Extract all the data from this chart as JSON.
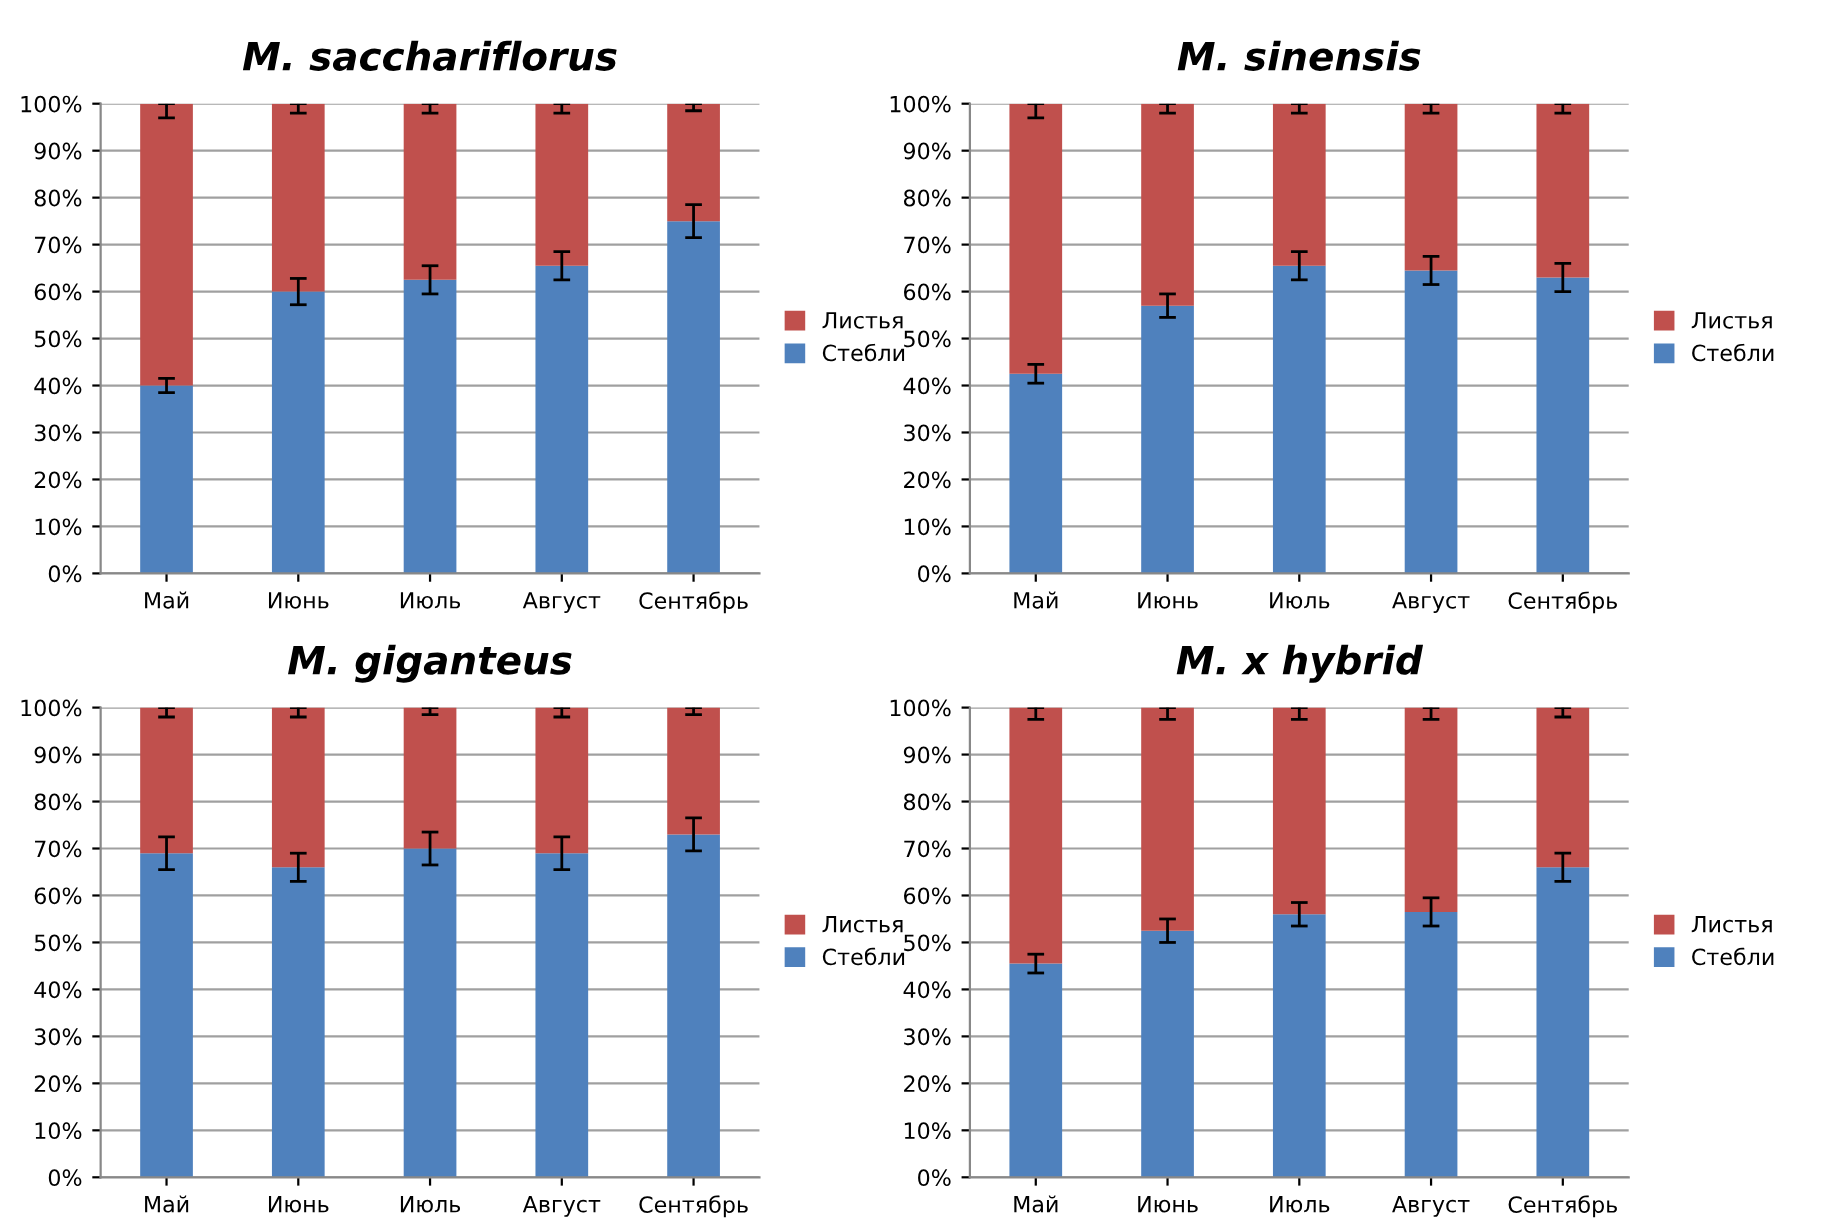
{
  "chart_data": [
    {
      "type": "bar",
      "stacked": true,
      "title": "M. sacchariflorus",
      "categories": [
        "Май",
        "Июнь",
        "Июль",
        "Август",
        "Сентябрь"
      ],
      "ylim": [
        0,
        100
      ],
      "yticks": [
        {
          "value": 0,
          "label": "0%"
        },
        {
          "value": 10,
          "label": "10%"
        },
        {
          "value": 20,
          "label": "20%"
        },
        {
          "value": 30,
          "label": "30%"
        },
        {
          "value": 40,
          "label": "40%"
        },
        {
          "value": 50,
          "label": "50%"
        },
        {
          "value": 60,
          "label": "60%"
        },
        {
          "value": 70,
          "label": "70%"
        },
        {
          "value": 80,
          "label": "80%"
        },
        {
          "value": 90,
          "label": "90%"
        },
        {
          "value": 100,
          "label": "100%"
        }
      ],
      "grid": "y",
      "legend": "right",
      "series": [
        {
          "name": "Стебли",
          "color": "#4f81bd",
          "values": [
            40,
            60,
            62.5,
            65.5,
            75
          ],
          "errors": [
            1.5,
            2.8,
            3,
            3,
            3.5
          ]
        },
        {
          "name": "Листья",
          "color": "#c0504d",
          "values": [
            60,
            40,
            37.5,
            34.5,
            25
          ],
          "errors": [
            [
              97,
              100
            ],
            [
              98,
              100
            ],
            [
              98,
              100
            ],
            [
              98,
              100
            ],
            [
              98.5,
              100
            ]
          ]
        }
      ]
    },
    {
      "type": "bar",
      "stacked": true,
      "title": "M. sinensis",
      "categories": [
        "Май",
        "Июнь",
        "Июль",
        "Август",
        "Сентябрь"
      ],
      "ylim": [
        0,
        100
      ],
      "yticks": [
        {
          "value": 0,
          "label": "0%"
        },
        {
          "value": 10,
          "label": "10%"
        },
        {
          "value": 20,
          "label": "20%"
        },
        {
          "value": 30,
          "label": "30%"
        },
        {
          "value": 40,
          "label": "40%"
        },
        {
          "value": 50,
          "label": "50%"
        },
        {
          "value": 60,
          "label": "60%"
        },
        {
          "value": 70,
          "label": "70%"
        },
        {
          "value": 80,
          "label": "80%"
        },
        {
          "value": 90,
          "label": "90%"
        },
        {
          "value": 100,
          "label": "100%"
        }
      ],
      "grid": "y",
      "legend": "right",
      "series": [
        {
          "name": "Стебли",
          "color": "#4f81bd",
          "values": [
            42.5,
            57,
            65.5,
            64.5,
            63
          ],
          "errors": [
            2,
            2.5,
            3,
            3,
            3
          ]
        },
        {
          "name": "Листья",
          "color": "#c0504d",
          "values": [
            57.5,
            43,
            34.5,
            35.5,
            37
          ],
          "errors": [
            [
              97,
              100
            ],
            [
              98,
              100
            ],
            [
              98,
              100
            ],
            [
              98,
              100
            ],
            [
              98,
              100
            ]
          ]
        }
      ]
    },
    {
      "type": "bar",
      "stacked": true,
      "title": "M. giganteus",
      "categories": [
        "Май",
        "Июнь",
        "Июль",
        "Август",
        "Сентябрь"
      ],
      "ylim": [
        0,
        100
      ],
      "yticks": [
        {
          "value": 0,
          "label": "0%"
        },
        {
          "value": 10,
          "label": "10%"
        },
        {
          "value": 20,
          "label": "20%"
        },
        {
          "value": 30,
          "label": "30%"
        },
        {
          "value": 40,
          "label": "40%"
        },
        {
          "value": 50,
          "label": "50%"
        },
        {
          "value": 60,
          "label": "60%"
        },
        {
          "value": 70,
          "label": "70%"
        },
        {
          "value": 80,
          "label": "80%"
        },
        {
          "value": 90,
          "label": "90%"
        },
        {
          "value": 100,
          "label": "100%"
        }
      ],
      "grid": "y",
      "legend": "right",
      "series": [
        {
          "name": "Стебли",
          "color": "#4f81bd",
          "values": [
            69,
            66,
            70,
            69,
            73
          ],
          "errors": [
            3.5,
            3,
            3.5,
            3.5,
            3.5
          ]
        },
        {
          "name": "Листья",
          "color": "#c0504d",
          "values": [
            31,
            34,
            30,
            31,
            27
          ],
          "errors": [
            [
              98,
              100
            ],
            [
              98,
              100
            ],
            [
              98.5,
              100
            ],
            [
              98,
              100
            ],
            [
              98.5,
              100
            ]
          ]
        }
      ]
    },
    {
      "type": "bar",
      "stacked": true,
      "title": "M. x hybrid",
      "categories": [
        "Май",
        "Июнь",
        "Июль",
        "Август",
        "Сентябрь"
      ],
      "ylim": [
        0,
        100
      ],
      "yticks": [
        {
          "value": 0,
          "label": "0%"
        },
        {
          "value": 10,
          "label": "10%"
        },
        {
          "value": 20,
          "label": "20%"
        },
        {
          "value": 30,
          "label": "30%"
        },
        {
          "value": 40,
          "label": "40%"
        },
        {
          "value": 50,
          "label": "50%"
        },
        {
          "value": 60,
          "label": "60%"
        },
        {
          "value": 70,
          "label": "70%"
        },
        {
          "value": 80,
          "label": "80%"
        },
        {
          "value": 90,
          "label": "90%"
        },
        {
          "value": 100,
          "label": "100%"
        }
      ],
      "grid": "y",
      "legend": "right",
      "series": [
        {
          "name": "Стебли",
          "color": "#4f81bd",
          "values": [
            45.5,
            52.5,
            56,
            56.5,
            66
          ],
          "errors": [
            2,
            2.5,
            2.5,
            3,
            3
          ]
        },
        {
          "name": "Листья",
          "color": "#c0504d",
          "values": [
            54.5,
            47.5,
            44,
            43.5,
            34
          ],
          "errors": [
            [
              97.5,
              100
            ],
            [
              97.5,
              100
            ],
            [
              97.5,
              100
            ],
            [
              97.5,
              100
            ],
            [
              98,
              100
            ]
          ]
        }
      ]
    }
  ]
}
